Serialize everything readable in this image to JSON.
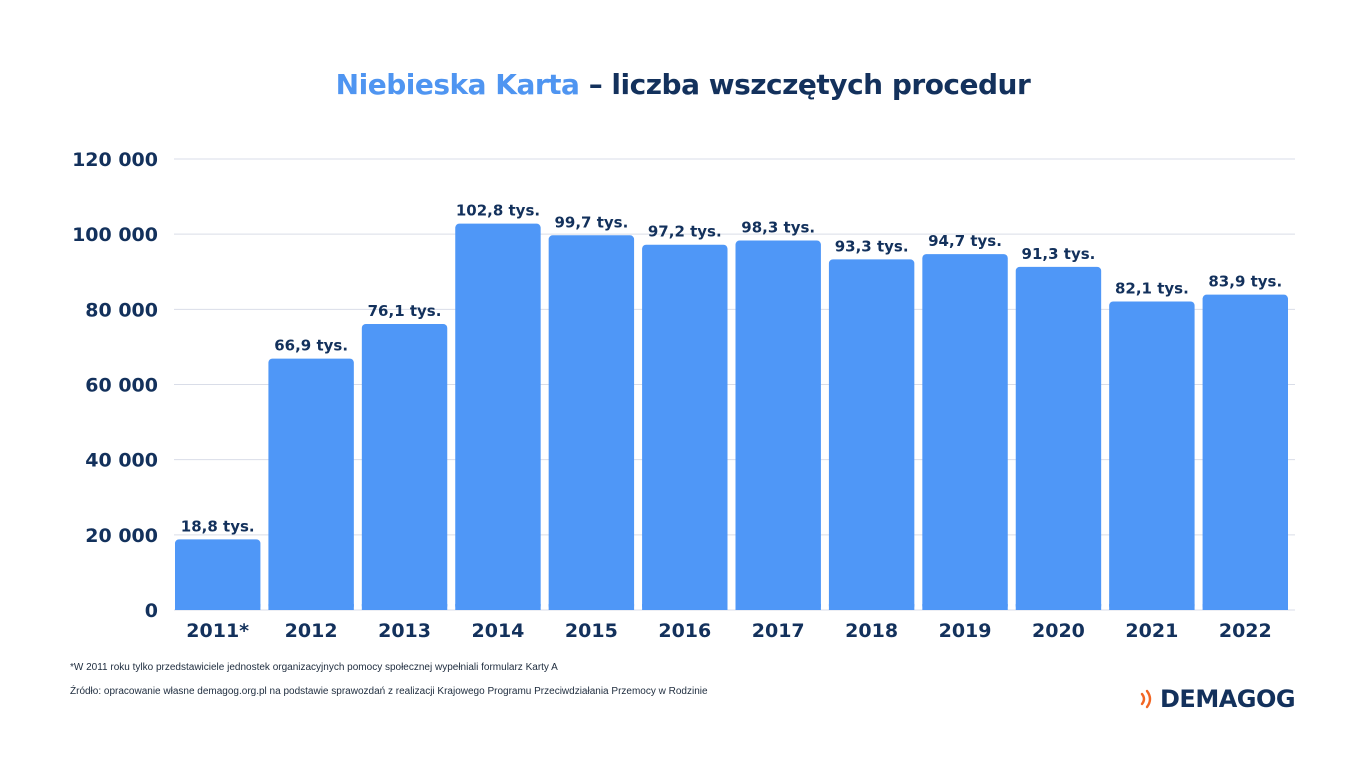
{
  "title": {
    "accent": "Niebieska Karta",
    "rest": "– liczba wszczętych procedur"
  },
  "colors": {
    "bar": "#4f97f7",
    "text": "#13315c",
    "accent": "#4f95f1",
    "grid": "#d9dde8",
    "logo_icon": "#f26522"
  },
  "chart_data": {
    "type": "bar",
    "title": "Niebieska Karta – liczba wszczętych procedur",
    "xlabel": "",
    "ylabel": "",
    "ylim": [
      0,
      120000
    ],
    "y_ticks": [
      0,
      20000,
      40000,
      60000,
      80000,
      100000,
      120000
    ],
    "y_tick_labels": [
      "0",
      "20 000",
      "40 000",
      "60 000",
      "80 000",
      "100 000",
      "120 000"
    ],
    "grid": true,
    "legend": "none",
    "categories": [
      "2011*",
      "2012",
      "2013",
      "2014",
      "2015",
      "2016",
      "2017",
      "2018",
      "2019",
      "2020",
      "2021",
      "2022"
    ],
    "values": [
      18800,
      66900,
      76100,
      102800,
      99700,
      97200,
      98300,
      93300,
      94700,
      91300,
      82100,
      83900
    ],
    "data_labels": [
      "18,8 tys.",
      "66,9 tys.",
      "76,1 tys.",
      "102,8 tys.",
      "99,7 tys.",
      "97,2 tys.",
      "98,3 tys.",
      "93,3 tys.",
      "94,7 tys.",
      "91,3 tys.",
      "82,1 tys.",
      "83,9 tys."
    ]
  },
  "footnotes": {
    "note": "*W 2011 roku tylko przedstawiciele jednostek organizacyjnych pomocy społecznej wypełniali formularz Karty A",
    "source": "Źródło: opracowanie własne demagog.org.pl na podstawie sprawozdań z realizacji Krajowego Programu Przeciwdziałania Przemocy w Rodzinie"
  },
  "logo": {
    "text": "DEMAGOG",
    "icon": "sound-waves-icon"
  }
}
